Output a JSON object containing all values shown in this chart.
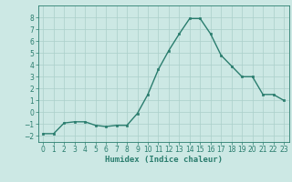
{
  "x": [
    0,
    1,
    2,
    3,
    4,
    5,
    6,
    7,
    8,
    9,
    10,
    11,
    12,
    13,
    14,
    15,
    16,
    17,
    18,
    19,
    20,
    21,
    22,
    23
  ],
  "y": [
    -1.8,
    -1.8,
    -0.9,
    -0.8,
    -0.8,
    -1.1,
    -1.2,
    -1.1,
    -1.1,
    -0.1,
    1.5,
    3.6,
    5.2,
    6.6,
    7.9,
    7.9,
    6.6,
    4.8,
    3.9,
    3.0,
    3.0,
    1.5,
    1.5,
    1.0
  ],
  "line_color": "#2a7d6e",
  "marker": "s",
  "marker_size": 2,
  "bg_color": "#cce8e4",
  "grid_color": "#aacfca",
  "xlabel": "Humidex (Indice chaleur)",
  "xlim": [
    -0.5,
    23.5
  ],
  "ylim": [
    -2.5,
    9.0
  ],
  "yticks": [
    -2,
    -1,
    0,
    1,
    2,
    3,
    4,
    5,
    6,
    7,
    8
  ],
  "xticks": [
    0,
    1,
    2,
    3,
    4,
    5,
    6,
    7,
    8,
    9,
    10,
    11,
    12,
    13,
    14,
    15,
    16,
    17,
    18,
    19,
    20,
    21,
    22,
    23
  ],
  "tick_fontsize": 5.5,
  "xlabel_fontsize": 6.5,
  "line_width": 1.0
}
